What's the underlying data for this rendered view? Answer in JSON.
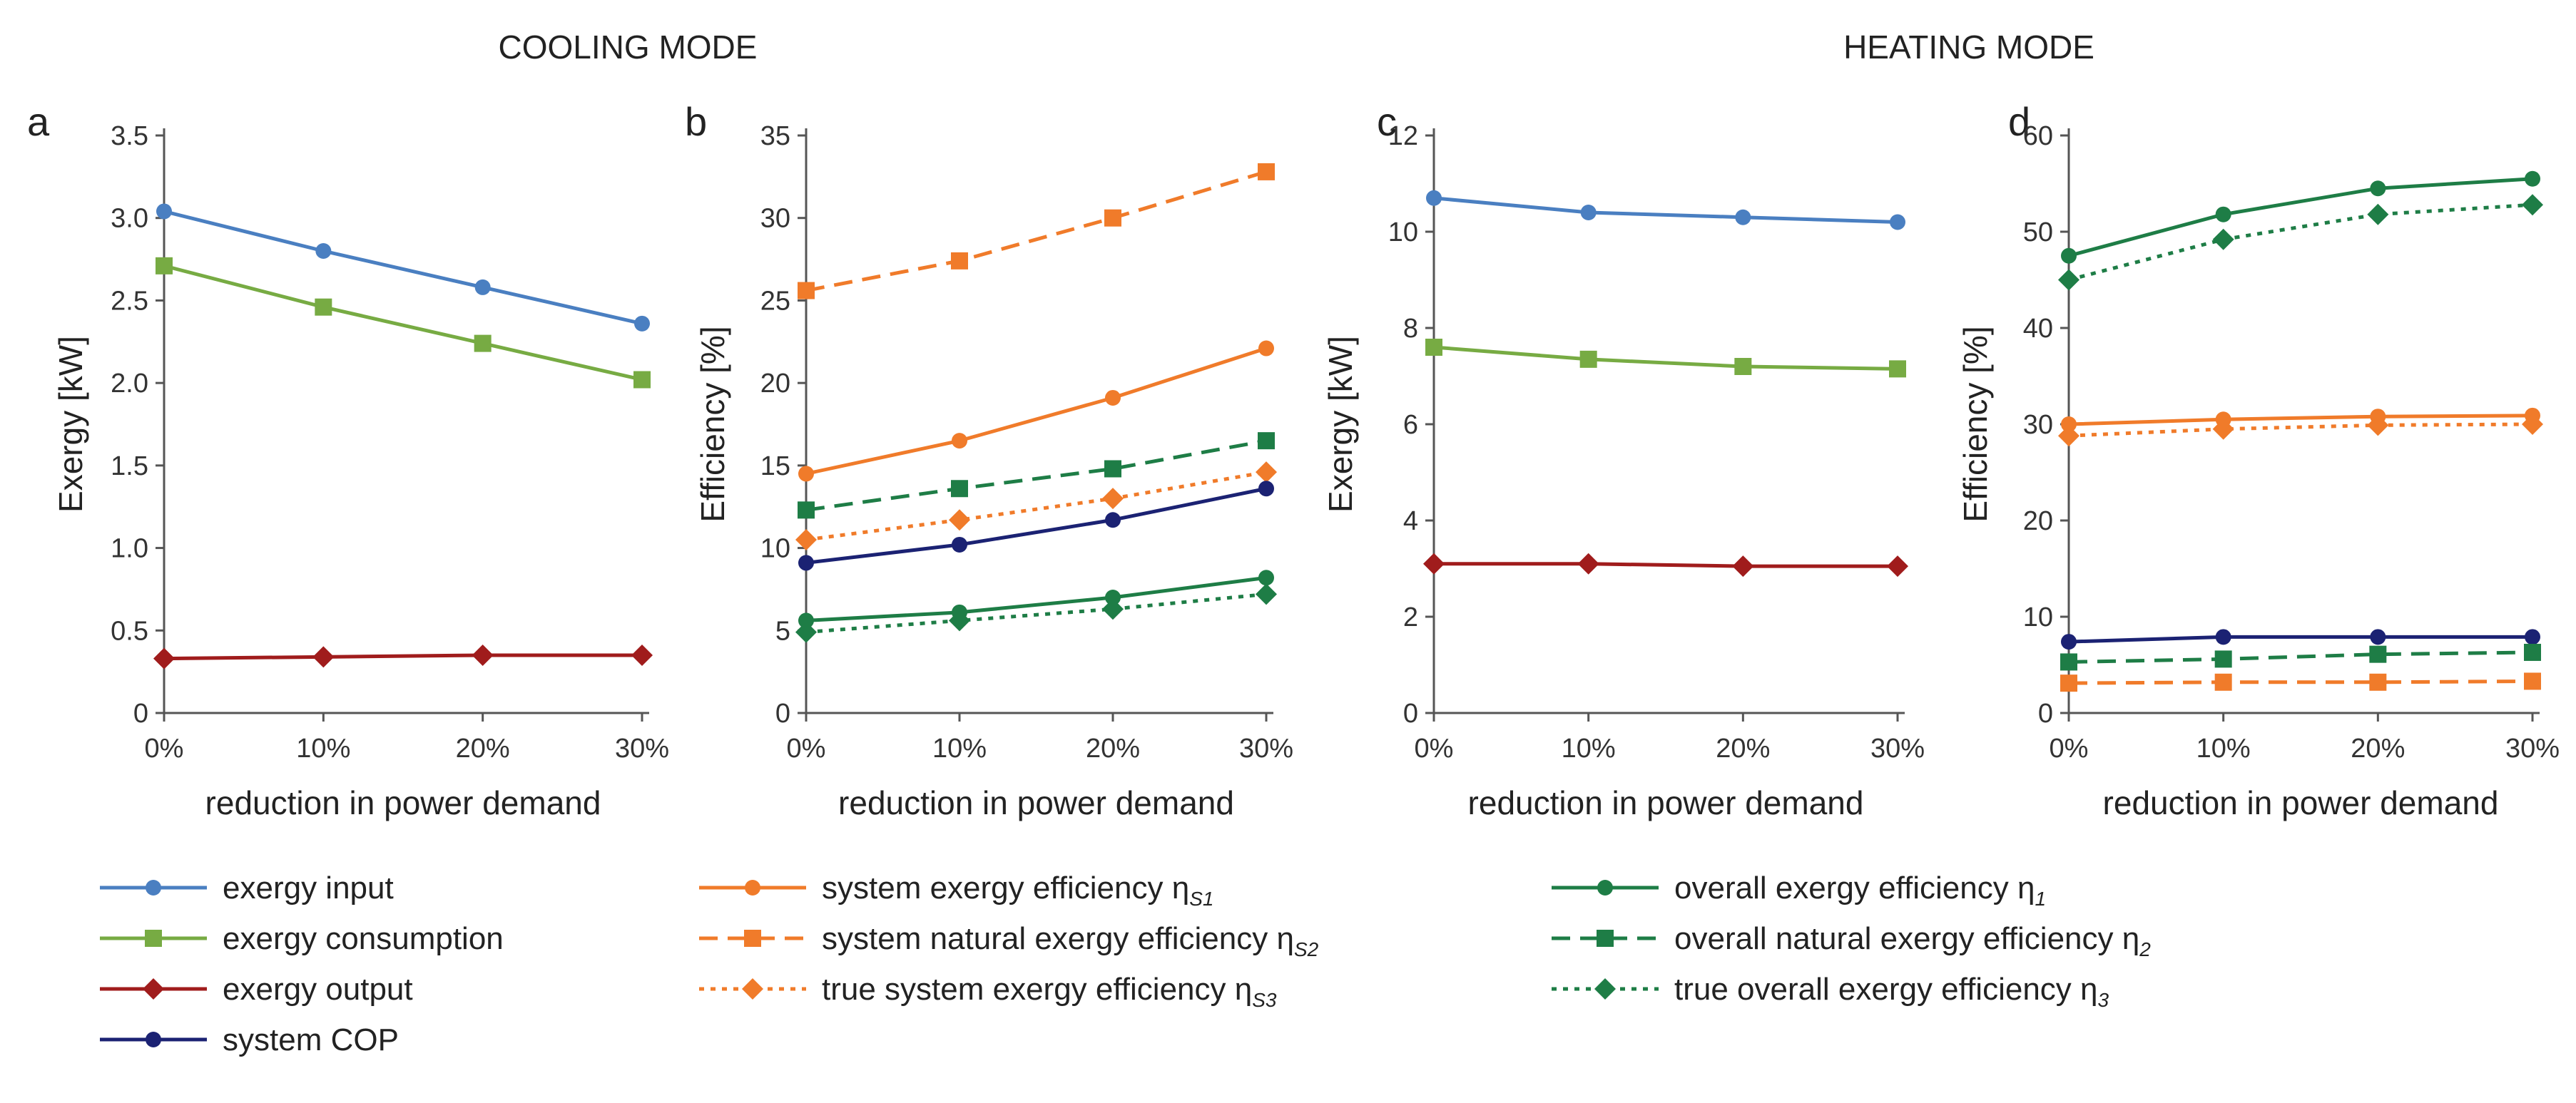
{
  "titles": {
    "cooling": "COOLING MODE",
    "heating": "HEATING MODE"
  },
  "chart_data": [
    {
      "panel": "a",
      "type": "line",
      "mode": "cooling",
      "xlabel": "reduction in power demand",
      "ylabel": "Exergy [kW]",
      "categories": [
        "0%",
        "10%",
        "20%",
        "30%"
      ],
      "ylim": [
        0,
        3.5
      ],
      "yticks": [
        0,
        0.5,
        1.0,
        1.5,
        2.0,
        2.5,
        3.0,
        3.5
      ],
      "yticklabels": [
        "0",
        "0.5",
        "1.0",
        "1.5",
        "2.0",
        "2.5",
        "3.0",
        "3.5"
      ],
      "series": [
        {
          "name": "exergy input",
          "values": [
            3.04,
            2.8,
            2.58,
            2.36
          ],
          "color": "#4a7fc1",
          "marker": "circle",
          "dash": "solid"
        },
        {
          "name": "exergy consumption",
          "values": [
            2.71,
            2.46,
            2.24,
            2.02
          ],
          "color": "#77ab43",
          "marker": "square",
          "dash": "solid"
        },
        {
          "name": "exergy output",
          "values": [
            0.33,
            0.34,
            0.35,
            0.35
          ],
          "color": "#a01c1c",
          "marker": "diamond",
          "dash": "solid"
        }
      ]
    },
    {
      "panel": "b",
      "type": "line",
      "mode": "cooling",
      "xlabel": "reduction in power demand",
      "ylabel": "Efficiency [%]",
      "categories": [
        "0%",
        "10%",
        "20%",
        "30%"
      ],
      "ylim": [
        0,
        35
      ],
      "yticks": [
        0,
        5,
        10,
        15,
        20,
        25,
        30,
        35
      ],
      "yticklabels": [
        "0",
        "5",
        "10",
        "15",
        "20",
        "25",
        "30",
        "35"
      ],
      "series": [
        {
          "name": "system natural exergy efficiency ηS2",
          "values": [
            25.6,
            27.4,
            30.0,
            32.8
          ],
          "color": "#f07b2a",
          "marker": "square",
          "dash": "dash"
        },
        {
          "name": "system exergy efficiency ηS1",
          "values": [
            14.5,
            16.5,
            19.1,
            22.1
          ],
          "color": "#f07b2a",
          "marker": "circle",
          "dash": "solid"
        },
        {
          "name": "overall natural exergy efficiency η2",
          "values": [
            12.3,
            13.6,
            14.8,
            16.5
          ],
          "color": "#1e7d46",
          "marker": "square",
          "dash": "dash"
        },
        {
          "name": "true system exergy efficiency ηS3",
          "values": [
            10.5,
            11.7,
            13.0,
            14.6
          ],
          "color": "#f07b2a",
          "marker": "diamond",
          "dash": "dot"
        },
        {
          "name": "system COP",
          "values": [
            9.1,
            10.2,
            11.7,
            13.6
          ],
          "color": "#1b2273",
          "marker": "circle",
          "dash": "solid"
        },
        {
          "name": "overall exergy efficiency η1",
          "values": [
            5.6,
            6.1,
            7.0,
            8.2
          ],
          "color": "#1e7d46",
          "marker": "circle",
          "dash": "solid"
        },
        {
          "name": "true overall exergy efficiency η3",
          "values": [
            4.9,
            5.6,
            6.3,
            7.2
          ],
          "color": "#1e7d46",
          "marker": "diamond",
          "dash": "dot"
        }
      ]
    },
    {
      "panel": "c",
      "type": "line",
      "mode": "heating",
      "xlabel": "reduction in power demand",
      "ylabel": "Exergy [kW]",
      "categories": [
        "0%",
        "10%",
        "20%",
        "30%"
      ],
      "ylim": [
        0,
        12
      ],
      "yticks": [
        0,
        2,
        4,
        6,
        8,
        10,
        12
      ],
      "yticklabels": [
        "0",
        "2",
        "4",
        "6",
        "8",
        "10",
        "12"
      ],
      "series": [
        {
          "name": "exergy input",
          "values": [
            10.7,
            10.4,
            10.3,
            10.2
          ],
          "color": "#4a7fc1",
          "marker": "circle",
          "dash": "solid"
        },
        {
          "name": "exergy consumption",
          "values": [
            7.6,
            7.35,
            7.2,
            7.15
          ],
          "color": "#77ab43",
          "marker": "square",
          "dash": "solid"
        },
        {
          "name": "exergy output",
          "values": [
            3.1,
            3.1,
            3.05,
            3.05
          ],
          "color": "#a01c1c",
          "marker": "diamond",
          "dash": "solid"
        }
      ]
    },
    {
      "panel": "d",
      "type": "line",
      "mode": "heating",
      "xlabel": "reduction in power demand",
      "ylabel": "Efficiency [%]",
      "categories": [
        "0%",
        "10%",
        "20%",
        "30%"
      ],
      "ylim": [
        0,
        60
      ],
      "yticks": [
        0,
        10,
        20,
        30,
        40,
        50,
        60
      ],
      "yticklabels": [
        "0",
        "10",
        "20",
        "30",
        "40",
        "50",
        "60"
      ],
      "series": [
        {
          "name": "overall exergy efficiency η1",
          "values": [
            47.5,
            51.8,
            54.5,
            55.5
          ],
          "color": "#1e7d46",
          "marker": "circle",
          "dash": "solid"
        },
        {
          "name": "true overall exergy efficiency η3",
          "values": [
            45.0,
            49.2,
            51.8,
            52.8
          ],
          "color": "#1e7d46",
          "marker": "diamond",
          "dash": "dot"
        },
        {
          "name": "system exergy efficiency ηS1",
          "values": [
            30.0,
            30.5,
            30.8,
            30.9
          ],
          "color": "#f07b2a",
          "marker": "circle",
          "dash": "solid"
        },
        {
          "name": "true system exergy efficiency ηS3",
          "values": [
            28.8,
            29.5,
            29.9,
            30.0
          ],
          "color": "#f07b2a",
          "marker": "diamond",
          "dash": "dot"
        },
        {
          "name": "system COP",
          "values": [
            7.4,
            7.9,
            7.9,
            7.9
          ],
          "color": "#1b2273",
          "marker": "circle",
          "dash": "solid"
        },
        {
          "name": "overall natural exergy efficiency η2",
          "values": [
            5.3,
            5.6,
            6.1,
            6.3
          ],
          "color": "#1e7d46",
          "marker": "square",
          "dash": "dash"
        },
        {
          "name": "system natural exergy efficiency ηS2",
          "values": [
            3.1,
            3.2,
            3.2,
            3.3
          ],
          "color": "#f07b2a",
          "marker": "square",
          "dash": "dash"
        }
      ]
    }
  ],
  "legend": [
    {
      "label": "exergy input",
      "sub": "",
      "color": "#4a7fc1",
      "marker": "circle",
      "dash": "solid"
    },
    {
      "label": "exergy consumption",
      "sub": "",
      "color": "#77ab43",
      "marker": "square",
      "dash": "solid"
    },
    {
      "label": "exergy output",
      "sub": "",
      "color": "#a01c1c",
      "marker": "diamond",
      "dash": "solid"
    },
    {
      "label": "system COP",
      "sub": "",
      "color": "#1b2273",
      "marker": "circle",
      "dash": "solid"
    },
    {
      "label": "system exergy efficiency η",
      "sub": "S1",
      "color": "#f07b2a",
      "marker": "circle",
      "dash": "solid"
    },
    {
      "label": "system natural exergy efficiency η",
      "sub": "S2",
      "color": "#f07b2a",
      "marker": "square",
      "dash": "dash"
    },
    {
      "label": "true system exergy efficiency η",
      "sub": "S3",
      "color": "#f07b2a",
      "marker": "diamond",
      "dash": "dot"
    },
    {
      "label": "overall exergy efficiency η",
      "sub": "1",
      "color": "#1e7d46",
      "marker": "circle",
      "dash": "solid"
    },
    {
      "label": "overall natural exergy efficiency η",
      "sub": "2",
      "color": "#1e7d46",
      "marker": "square",
      "dash": "dash"
    },
    {
      "label": "true overall exergy efficiency η",
      "sub": "3",
      "color": "#1e7d46",
      "marker": "diamond",
      "dash": "dot"
    }
  ]
}
